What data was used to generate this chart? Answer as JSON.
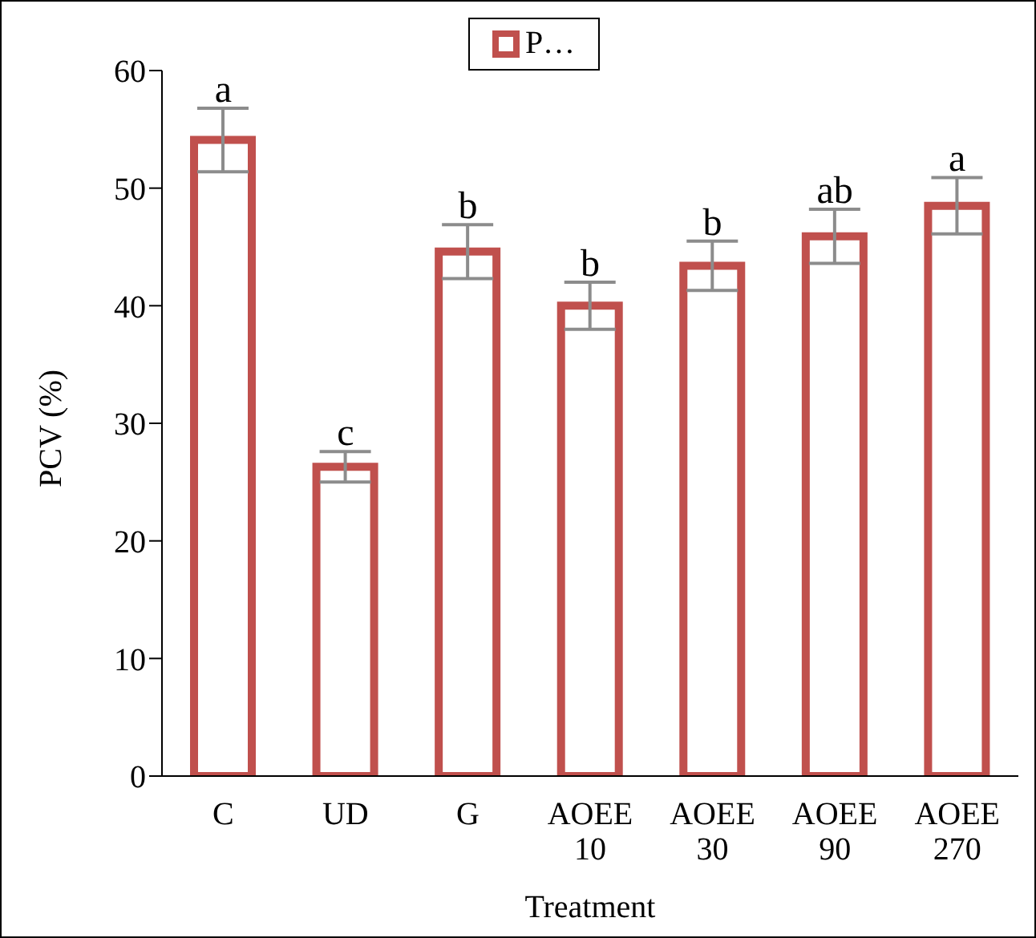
{
  "chart_data": {
    "type": "bar",
    "xlabel": "Treatment",
    "ylabel": "PCV (%)",
    "categories": [
      "C",
      "UD",
      "G",
      "AOEE 10",
      "AOEE 30",
      "AOEE 90",
      "AOEE 270"
    ],
    "series": [
      {
        "name": "P…",
        "color": "#c0504d",
        "values": [
          54.1,
          26.3,
          44.6,
          40.0,
          43.4,
          45.9,
          48.5
        ],
        "errors": [
          2.7,
          1.3,
          2.3,
          2.0,
          2.1,
          2.3,
          2.4
        ]
      }
    ],
    "ylim": [
      0,
      60
    ],
    "yticks": [
      0,
      10,
      20,
      30,
      40,
      50,
      60
    ],
    "grid": false,
    "legend": "top",
    "annotations": [
      {
        "text": "a",
        "x": "C",
        "y": 56.8
      },
      {
        "text": "c",
        "x": "UD",
        "y": 27.6
      },
      {
        "text": "b",
        "x": "G",
        "y": 46.9
      },
      {
        "text": "b",
        "x": "AOEE 10",
        "y": 42.0
      },
      {
        "text": "b",
        "x": "AOEE 30",
        "y": 45.5
      },
      {
        "text": "ab",
        "x": "AOEE 90",
        "y": 48.2
      },
      {
        "text": "a",
        "x": "AOEE 270",
        "y": 50.9
      }
    ]
  }
}
